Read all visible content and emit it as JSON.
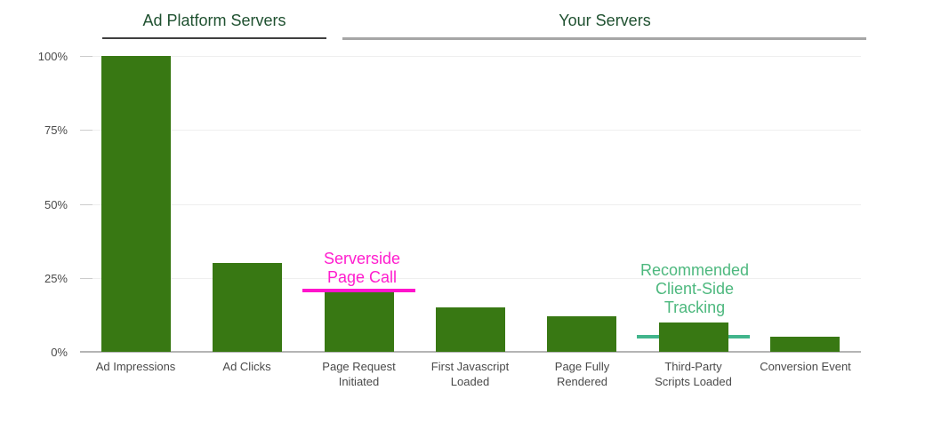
{
  "chart_data": {
    "type": "bar",
    "title": "",
    "xlabel": "",
    "ylabel": "",
    "categories": [
      "Ad Impressions",
      "Ad Clicks",
      "Page Request Initiated",
      "First Javascript Loaded",
      "Page Fully Rendered",
      "Third-Party Scripts Loaded",
      "Conversion Event"
    ],
    "category_lines": [
      "Ad Impressions",
      "Ad Clicks",
      "Page Request\nInitiated",
      "First Javascript\nLoaded",
      "Page Fully\nRendered",
      "Third-Party\nScripts Loaded",
      "Conversion Event"
    ],
    "values": [
      100,
      30,
      20,
      15,
      12,
      10,
      5
    ],
    "ylim": [
      0,
      100
    ],
    "yticks": [
      {
        "value": 0,
        "label": "0%"
      },
      {
        "value": 25,
        "label": "25%"
      },
      {
        "value": 50,
        "label": "50%"
      },
      {
        "value": 75,
        "label": "75%"
      },
      {
        "value": 100,
        "label": "100%"
      }
    ],
    "grid": true,
    "legend": "none",
    "sections": [
      {
        "label": "Ad Platform Servers",
        "from_category": 0,
        "to_category": 1,
        "text_color": "#1f5130",
        "underline_color": "#3f3f3f"
      },
      {
        "label": "Your Servers",
        "from_category": 2,
        "to_category": 6,
        "text_color": "#1f5130",
        "underline_color": "#a6a6a6"
      }
    ],
    "annotations": [
      {
        "text": "Serverside\nPage Call",
        "category_index": 2,
        "line_value": 20.7,
        "text_color": "#ff1dce",
        "line_color": "#ff14cc",
        "line_behind_bar": false
      },
      {
        "text": "Recommended\nClient-Side\nTracking",
        "category_index": 5,
        "line_value": 5.2,
        "text_color": "#4db87e",
        "line_color": "#42b58c",
        "line_behind_bar": true
      }
    ],
    "style": {
      "bar_color": "#387813",
      "axis_label_color": "#4a4a4a",
      "gridline_color": "#efefef",
      "baseline_color": "#b5b5b5",
      "background": "#ffffff"
    }
  }
}
